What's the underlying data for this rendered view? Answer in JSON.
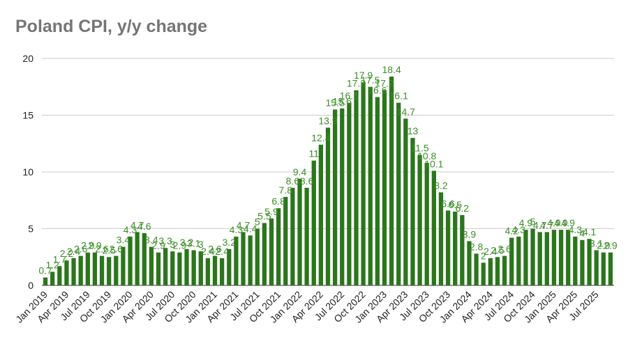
{
  "chart_data": {
    "type": "bar",
    "title": "Poland CPI, y/y change",
    "xlabel": "",
    "ylabel": "",
    "ylim": [
      0,
      20
    ],
    "y_ticks": [
      0,
      5,
      10,
      15,
      20
    ],
    "grid": true,
    "legend": "none",
    "color": "#2b761c",
    "label_color": "#3b8e26",
    "categories": [
      "Jan 2019",
      "Feb 2019",
      "Mar 2019",
      "Apr 2019",
      "May 2019",
      "Jun 2019",
      "Jul 2019",
      "Aug 2019",
      "Sep 2019",
      "Oct 2019",
      "Nov 2019",
      "Dec 2019",
      "Jan 2020",
      "Feb 2020",
      "Mar 2020",
      "Apr 2020",
      "May 2020",
      "Jun 2020",
      "Jul 2020",
      "Aug 2020",
      "Sep 2020",
      "Oct 2020",
      "Nov 2020",
      "Dec 2020",
      "Jan 2021",
      "Feb 2021",
      "Mar 2021",
      "Apr 2021",
      "May 2021",
      "Jun 2021",
      "Jul 2021",
      "Aug 2021",
      "Sep 2021",
      "Oct 2021",
      "Nov 2021",
      "Dec 2021",
      "Jan 2022",
      "Feb 2022",
      "Mar 2022",
      "Apr 2022",
      "May 2022",
      "Jun 2022",
      "Jul 2022",
      "Aug 2022",
      "Sep 2022",
      "Oct 2022",
      "Nov 2022",
      "Dec 2022",
      "Jan 2023",
      "Feb 2023",
      "Mar 2023",
      "Apr 2023",
      "May 2023",
      "Jun 2023",
      "Jul 2023",
      "Aug 2023",
      "Sep 2023",
      "Oct 2023",
      "Nov 2023",
      "Dec 2023",
      "Jan 2024",
      "Feb 2024",
      "Mar 2024",
      "Apr 2024",
      "May 2024",
      "Jun 2024",
      "Jul 2024",
      "Aug 2024",
      "Sep 2024",
      "Oct 2024",
      "Nov 2024",
      "Dec 2024",
      "Jan 2025",
      "Feb 2025",
      "Mar 2025",
      "Apr 2025",
      "May 2025",
      "Jun 2025",
      "Jul 2025",
      "Aug 2025",
      "Sep 2025"
    ],
    "values": [
      0.7,
      1.2,
      1.7,
      2.2,
      2.4,
      2.6,
      2.9,
      2.9,
      2.6,
      2.5,
      2.6,
      3.4,
      4.3,
      4.7,
      4.6,
      3.4,
      2.9,
      3.3,
      3.0,
      2.9,
      3.2,
      3.1,
      3.0,
      2.4,
      2.6,
      2.4,
      3.2,
      4.3,
      4.7,
      4.4,
      5.0,
      5.5,
      5.9,
      6.8,
      7.8,
      8.6,
      9.4,
      8.6,
      11.0,
      12.4,
      13.9,
      15.5,
      15.6,
      16.1,
      17.2,
      17.9,
      17.5,
      16.6,
      17.2,
      18.4,
      16.1,
      14.7,
      13.0,
      11.5,
      10.8,
      10.1,
      8.2,
      6.6,
      6.5,
      6.2,
      3.9,
      2.8,
      2.0,
      2.4,
      2.5,
      2.6,
      4.2,
      4.3,
      4.9,
      5.0,
      4.7,
      4.7,
      4.9,
      4.9,
      4.9,
      4.3,
      4.0,
      4.1,
      3.1,
      2.9,
      2.9
    ],
    "data_labels": [
      "0.7",
      "1.2",
      "1.7",
      "2.2",
      "2.4",
      "2.6",
      "2.9",
      "2.9",
      "2.6",
      "2.5",
      "2.6",
      "3.4",
      "4.3",
      "4.7",
      "4.6",
      "3.4",
      "2.9",
      "3.3",
      "3",
      "2.9",
      "3.2",
      "3.1",
      "3",
      "2.4",
      "2.6",
      "2.4",
      "3.2",
      "4.3",
      "4.7",
      "4.4",
      "5",
      "5.5",
      "5.9",
      "6.8",
      "7.8",
      "8.6",
      "9.4",
      "8.6",
      "11",
      "12.4",
      "13.9",
      "15.5",
      "15.6",
      "16.1",
      "17.2",
      "17.9",
      "17.5",
      "16.6",
      "17.2",
      "18.4",
      "16.1",
      "14.7",
      "13",
      "11.5",
      "10.8",
      "10.1",
      "8.2",
      "6.6",
      "6.5",
      "6.2",
      "3.9",
      "2.8",
      "2",
      "2.4",
      "2.5",
      "2.6",
      "4.2",
      "4.3",
      "4.9",
      "5",
      "4.7",
      "4.7",
      "4.9",
      "4.9",
      "4.9",
      "4.3",
      "4",
      "4.1",
      "3.1",
      "2.9",
      "2.9"
    ],
    "x_tick_labels": [
      {
        "index": 0,
        "label": "Jan 2019"
      },
      {
        "index": 3,
        "label": "Apr 2019"
      },
      {
        "index": 6,
        "label": "Jul 2019"
      },
      {
        "index": 9,
        "label": "Oct 2019"
      },
      {
        "index": 12,
        "label": "Jan 2020"
      },
      {
        "index": 15,
        "label": "Apr 2020"
      },
      {
        "index": 18,
        "label": "Jul 2020"
      },
      {
        "index": 21,
        "label": "Oct 2020"
      },
      {
        "index": 24,
        "label": "Jan 2021"
      },
      {
        "index": 27,
        "label": "Apr 2021"
      },
      {
        "index": 30,
        "label": "Jul 2021"
      },
      {
        "index": 33,
        "label": "Oct 2021"
      },
      {
        "index": 36,
        "label": "Jan 2022"
      },
      {
        "index": 39,
        "label": "Apr 2022"
      },
      {
        "index": 42,
        "label": "Jul 2022"
      },
      {
        "index": 45,
        "label": "Oct 2022"
      },
      {
        "index": 48,
        "label": "Jan 2023"
      },
      {
        "index": 51,
        "label": "Apr 2023"
      },
      {
        "index": 54,
        "label": "Jul 2023"
      },
      {
        "index": 57,
        "label": "Oct 2023"
      },
      {
        "index": 60,
        "label": "Jan 2024"
      },
      {
        "index": 63,
        "label": "Apr 2024"
      },
      {
        "index": 66,
        "label": "Jul 2024"
      },
      {
        "index": 69,
        "label": "Oct 2024"
      },
      {
        "index": 72,
        "label": "Jan 2025"
      },
      {
        "index": 75,
        "label": "Apr 2025"
      },
      {
        "index": 78,
        "label": "Jul 2025"
      }
    ]
  }
}
